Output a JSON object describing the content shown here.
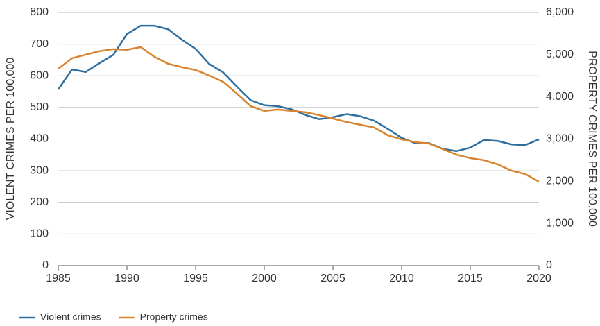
{
  "chart_data": {
    "type": "line",
    "x": [
      1985,
      1986,
      1987,
      1988,
      1989,
      1990,
      1991,
      1992,
      1993,
      1994,
      1995,
      1996,
      1997,
      1998,
      1999,
      2000,
      2001,
      2002,
      2003,
      2004,
      2005,
      2006,
      2007,
      2008,
      2009,
      2010,
      2011,
      2012,
      2013,
      2014,
      2015,
      2016,
      2017,
      2018,
      2019,
      2020
    ],
    "xlim": [
      1985,
      2020
    ],
    "xticks": [
      1985,
      1990,
      1995,
      2000,
      2005,
      2010,
      2015,
      2020
    ],
    "ylabel": "VIOLENT CRIMES PER 100,000",
    "y2label": "PROPERTY CRIMES PER 100,000",
    "ylim": [
      0,
      800
    ],
    "yticks": [
      0,
      100,
      200,
      300,
      400,
      500,
      600,
      700,
      800
    ],
    "y2lim": [
      0,
      6000
    ],
    "y2ticks": [
      0,
      {
        "value": 1000,
        "label": "1,000"
      },
      {
        "value": 2000,
        "label": "2,000"
      },
      {
        "value": 3000,
        "label": "3,000"
      },
      {
        "value": 4000,
        "label": "4,000"
      },
      {
        "value": 5000,
        "label": "5,000"
      },
      {
        "value": 6000,
        "label": "6,000"
      }
    ],
    "grid": true,
    "legend": "bottom-left",
    "series": [
      {
        "name": "Violent crimes",
        "color": "#2f6f9f",
        "values": [
          557,
          620,
          612,
          640,
          666,
          732,
          758,
          758,
          747,
          714,
          685,
          637,
          611,
          566,
          523,
          507,
          504,
          494,
          476,
          463,
          469,
          479,
          472,
          458,
          432,
          404,
          387,
          387,
          369,
          362,
          373,
          397,
          394,
          383,
          381,
          399
        ]
      },
      {
        "name": "Property crimes",
        "color": "#d9832e",
        "axis": "y2",
        "values": [
          4666,
          4916,
          5000,
          5083,
          5130,
          5117,
          5180,
          4950,
          4786,
          4704,
          4637,
          4506,
          4357,
          4079,
          3782,
          3667,
          3700,
          3667,
          3635,
          3568,
          3487,
          3404,
          3339,
          3273,
          3090,
          2993,
          2927,
          2894,
          2763,
          2630,
          2549,
          2500,
          2400,
          2253,
          2171,
          1990
        ]
      }
    ]
  }
}
